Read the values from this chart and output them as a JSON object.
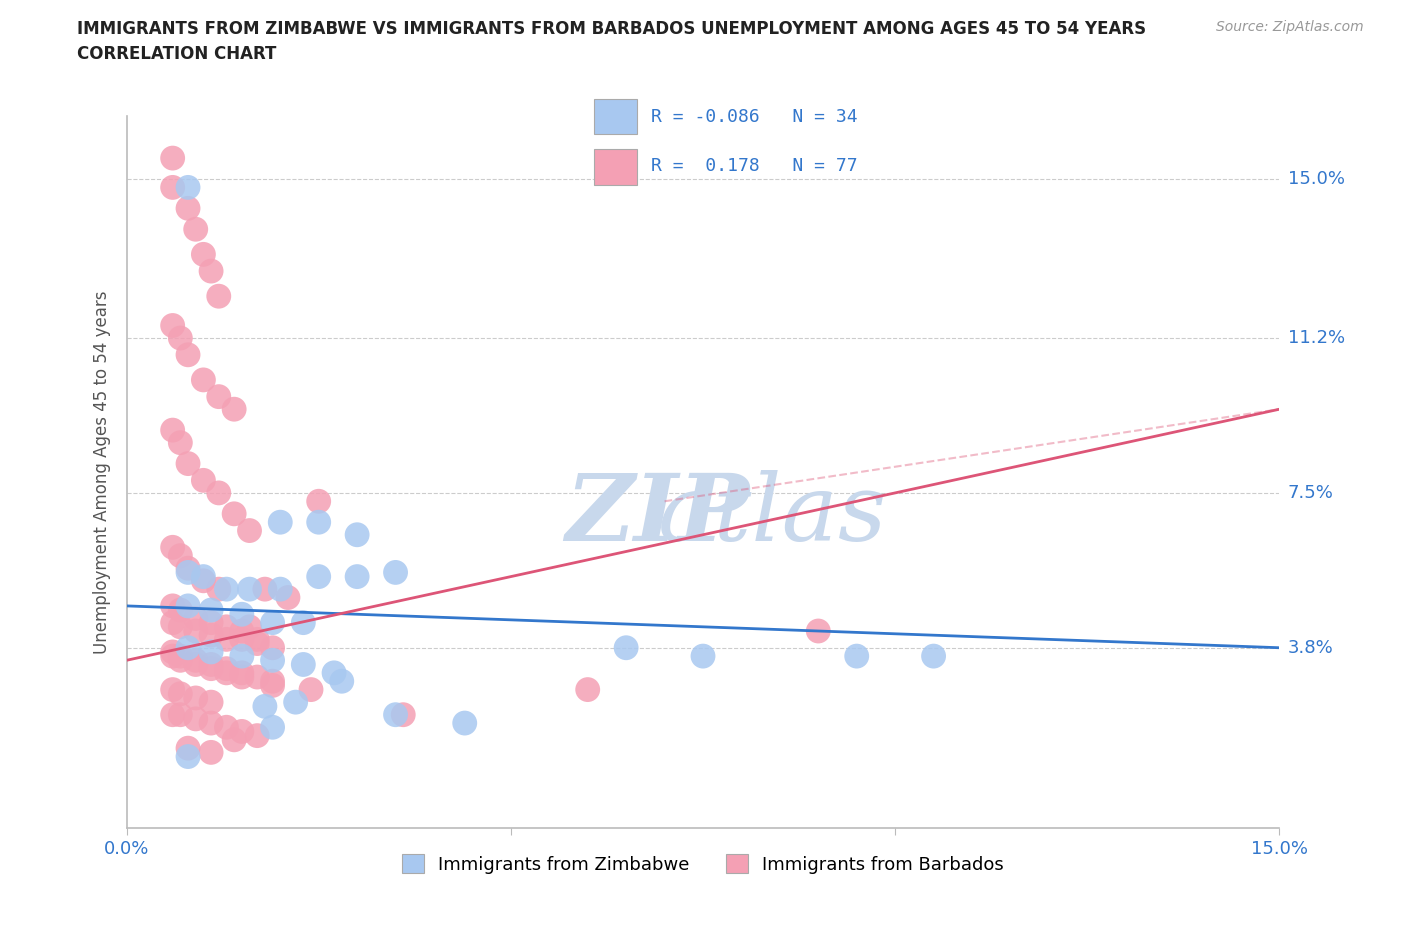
{
  "title_line1": "IMMIGRANTS FROM ZIMBABWE VS IMMIGRANTS FROM BARBADOS UNEMPLOYMENT AMONG AGES 45 TO 54 YEARS",
  "title_line2": "CORRELATION CHART",
  "source_text": "Source: ZipAtlas.com",
  "ylabel": "Unemployment Among Ages 45 to 54 years",
  "xlim": [
    0.0,
    0.15
  ],
  "ylim": [
    -0.005,
    0.165
  ],
  "ytick_labels": [
    "3.8%",
    "7.5%",
    "11.2%",
    "15.0%"
  ],
  "ytick_positions": [
    0.038,
    0.075,
    0.112,
    0.15
  ],
  "xtick_positions": [
    0.0,
    0.05,
    0.1,
    0.15
  ],
  "xtick_labels": [
    "0.0%",
    "",
    "",
    "15.0%"
  ],
  "zimbabwe_color": "#a8c8f0",
  "barbados_color": "#f4a0b4",
  "zimbabwe_line_color": "#3377cc",
  "barbados_line_color": "#dd5577",
  "watermark_zip_color": "#c8d8ec",
  "watermark_atlas_color": "#c8d8ec",
  "legend_r_zim": "-0.086",
  "legend_n_zim": "34",
  "legend_r_barb": "0.178",
  "legend_n_barb": "77",
  "label_zimbabwe": "Immigrants from Zimbabwe",
  "label_barbados": "Immigrants from Barbados",
  "zim_trend_x0": 0.0,
  "zim_trend_y0": 0.048,
  "zim_trend_x1": 0.15,
  "zim_trend_y1": 0.038,
  "barb_trend_x0": 0.0,
  "barb_trend_y0": 0.035,
  "barb_trend_x1": 0.15,
  "barb_trend_y1": 0.095,
  "zimbabwe_scatter_x": [
    0.008,
    0.02,
    0.025,
    0.03,
    0.008,
    0.01,
    0.013,
    0.016,
    0.02,
    0.025,
    0.03,
    0.035,
    0.008,
    0.011,
    0.015,
    0.019,
    0.023,
    0.008,
    0.011,
    0.015,
    0.019,
    0.023,
    0.027,
    0.065,
    0.075,
    0.095,
    0.028,
    0.022,
    0.018,
    0.035,
    0.044,
    0.019,
    0.105,
    0.008
  ],
  "zimbabwe_scatter_y": [
    0.148,
    0.068,
    0.068,
    0.065,
    0.056,
    0.055,
    0.052,
    0.052,
    0.052,
    0.055,
    0.055,
    0.056,
    0.048,
    0.047,
    0.046,
    0.044,
    0.044,
    0.038,
    0.037,
    0.036,
    0.035,
    0.034,
    0.032,
    0.038,
    0.036,
    0.036,
    0.03,
    0.025,
    0.024,
    0.022,
    0.02,
    0.019,
    0.036,
    0.012
  ],
  "barbados_scatter_x": [
    0.006,
    0.006,
    0.008,
    0.009,
    0.01,
    0.011,
    0.012,
    0.006,
    0.007,
    0.008,
    0.01,
    0.012,
    0.014,
    0.006,
    0.007,
    0.008,
    0.01,
    0.012,
    0.014,
    0.016,
    0.006,
    0.007,
    0.008,
    0.01,
    0.012,
    0.006,
    0.007,
    0.009,
    0.011,
    0.013,
    0.015,
    0.017,
    0.006,
    0.007,
    0.009,
    0.011,
    0.013,
    0.015,
    0.017,
    0.019,
    0.006,
    0.007,
    0.009,
    0.011,
    0.006,
    0.007,
    0.009,
    0.011,
    0.013,
    0.015,
    0.017,
    0.006,
    0.007,
    0.009,
    0.011,
    0.013,
    0.015,
    0.017,
    0.019,
    0.006,
    0.007,
    0.009,
    0.011,
    0.013,
    0.015,
    0.019,
    0.024,
    0.018,
    0.021,
    0.016,
    0.036,
    0.06,
    0.09,
    0.025,
    0.014,
    0.008,
    0.011
  ],
  "barbados_scatter_y": [
    0.155,
    0.148,
    0.143,
    0.138,
    0.132,
    0.128,
    0.122,
    0.115,
    0.112,
    0.108,
    0.102,
    0.098,
    0.095,
    0.09,
    0.087,
    0.082,
    0.078,
    0.075,
    0.07,
    0.066,
    0.062,
    0.06,
    0.057,
    0.054,
    0.052,
    0.048,
    0.047,
    0.045,
    0.044,
    0.043,
    0.042,
    0.04,
    0.037,
    0.036,
    0.035,
    0.034,
    0.033,
    0.032,
    0.031,
    0.03,
    0.028,
    0.027,
    0.026,
    0.025,
    0.022,
    0.022,
    0.021,
    0.02,
    0.019,
    0.018,
    0.017,
    0.044,
    0.043,
    0.042,
    0.041,
    0.04,
    0.04,
    0.039,
    0.038,
    0.036,
    0.035,
    0.034,
    0.033,
    0.032,
    0.031,
    0.029,
    0.028,
    0.052,
    0.05,
    0.043,
    0.022,
    0.028,
    0.042,
    0.073,
    0.016,
    0.014,
    0.013
  ]
}
